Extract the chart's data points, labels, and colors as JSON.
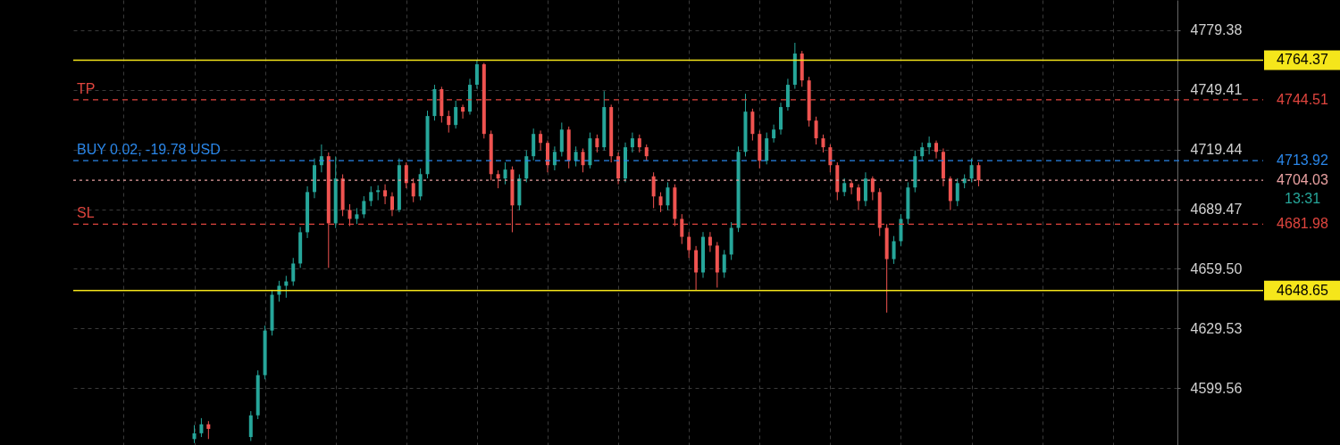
{
  "chart_data": {
    "type": "candlestick",
    "categories": [
      null,
      null,
      null,
      null,
      null,
      null,
      null,
      null,
      null,
      null,
      null,
      null,
      null,
      null,
      null,
      null,
      null,
      null,
      null,
      null,
      null,
      null,
      null,
      null,
      null,
      null,
      null,
      null,
      null,
      null,
      null,
      null,
      null,
      null,
      null,
      null,
      null,
      null,
      null,
      null,
      null,
      null,
      null,
      null,
      null,
      null,
      null,
      null,
      null,
      null,
      null,
      null,
      null,
      null,
      null,
      null,
      null,
      null,
      null,
      null,
      null,
      null,
      null,
      null,
      null,
      null,
      null,
      null,
      null,
      null,
      null,
      null,
      null,
      null,
      null,
      null,
      null,
      null,
      null,
      null,
      null,
      null,
      null,
      null,
      null,
      null,
      null,
      null,
      null,
      null,
      null,
      null,
      null,
      null,
      null,
      null,
      null,
      null,
      null,
      null,
      null,
      null,
      null,
      null,
      null,
      null,
      null,
      null,
      null,
      null,
      null,
      null,
      null,
      null,
      null,
      null,
      null,
      null,
      null,
      null,
      null,
      null,
      null,
      null,
      null,
      null,
      null,
      null,
      null,
      null,
      null,
      null,
      null,
      null,
      null,
      null,
      null,
      null,
      null,
      null,
      null,
      null,
      null,
      null,
      null,
      null,
      null,
      null,
      null,
      null,
      null,
      null,
      null,
      null,
      null
    ],
    "ohlc": [
      null,
      null,
      null,
      null,
      null,
      null,
      null,
      null,
      null,
      null,
      null,
      null,
      null,
      null,
      null,
      null,
      [
        4574.0,
        4581.0,
        4572.0,
        4576.9
      ],
      [
        4576.9,
        4584.5,
        4575.0,
        4581.4
      ],
      [
        4581.4,
        4583.0,
        4574.0,
        4579.1
      ],
      null,
      null,
      null,
      null,
      null,
      [
        4575.0,
        4588.0,
        4573.0,
        4585.9
      ],
      [
        4585.9,
        4608.5,
        4584.0,
        4606.1
      ],
      [
        4606.1,
        4631.0,
        4604.0,
        4628.5
      ],
      [
        4628.5,
        4649.0,
        4626.0,
        4646.5
      ],
      [
        4646.5,
        4653.5,
        4643.0,
        4651.0
      ],
      [
        4651.0,
        4656.0,
        4645.0,
        4653.2
      ],
      [
        4653.2,
        4665.0,
        4651.0,
        4662.2
      ],
      [
        4662.2,
        4680.5,
        4660.0,
        4677.9
      ],
      [
        4677.9,
        4701.0,
        4675.0,
        4698.1
      ],
      [
        4698.1,
        4715.0,
        4695.0,
        4711.6
      ],
      [
        4711.6,
        4722.0,
        4708.0,
        4716.1
      ],
      [
        4716.1,
        4718.0,
        4660.0,
        4682.4
      ],
      [
        4682.4,
        4716.0,
        4680.0,
        4704.9
      ],
      [
        4704.9,
        4707.0,
        4686.0,
        4689.1
      ],
      [
        4689.1,
        4692.0,
        4681.0,
        4684.6
      ],
      [
        4684.6,
        4690.0,
        4682.0,
        4686.9
      ],
      [
        4686.9,
        4696.0,
        4685.0,
        4693.6
      ],
      [
        4693.6,
        4701.0,
        4691.0,
        4698.1
      ],
      [
        4698.1,
        4701.5,
        4694.0,
        4699.0
      ],
      [
        4699.0,
        4702.0,
        4692.0,
        4695.9
      ],
      [
        4695.9,
        4698.0,
        4686.0,
        4689.1
      ],
      [
        4689.1,
        4715.0,
        4688.0,
        4711.6
      ],
      [
        4711.6,
        4713.0,
        4700.0,
        4702.6
      ],
      [
        4702.6,
        4705.0,
        4693.0,
        4695.9
      ],
      [
        4695.9,
        4710.0,
        4694.0,
        4707.1
      ],
      [
        4707.1,
        4739.0,
        4705.0,
        4736.3
      ],
      [
        4736.3,
        4752.0,
        4734.0,
        4749.8
      ],
      [
        4749.8,
        4751.0,
        4733.0,
        4736.3
      ],
      [
        4736.3,
        4739.0,
        4728.0,
        4731.8
      ],
      [
        4731.8,
        4744.0,
        4730.0,
        4740.8
      ],
      [
        4740.8,
        4742.0,
        4735.0,
        4738.5
      ],
      [
        4738.5,
        4755.0,
        4737.0,
        4752.0
      ],
      [
        4752.0,
        4764.1,
        4750.0,
        4762.3
      ],
      [
        4762.3,
        4763.0,
        4725.0,
        4727.3
      ],
      [
        4727.3,
        4729.0,
        4704.0,
        4707.1
      ],
      [
        4707.1,
        4709.0,
        4700.0,
        4704.9
      ],
      [
        4704.9,
        4713.0,
        4702.0,
        4709.4
      ],
      [
        4709.4,
        4711.0,
        4677.9,
        4691.4
      ],
      [
        4691.4,
        4707.0,
        4689.0,
        4704.9
      ],
      [
        4704.9,
        4719.0,
        4703.0,
        4716.1
      ],
      [
        4716.1,
        4730.0,
        4714.0,
        4727.3
      ],
      [
        4727.3,
        4729.0,
        4719.0,
        4722.8
      ],
      [
        4722.8,
        4724.0,
        4708.0,
        4711.6
      ],
      [
        4711.6,
        4721.0,
        4709.0,
        4718.3
      ],
      [
        4718.3,
        4733.0,
        4716.0,
        4729.5
      ],
      [
        4729.5,
        4731.0,
        4710.0,
        4713.8
      ],
      [
        4713.8,
        4721.0,
        4711.0,
        4718.3
      ],
      [
        4718.3,
        4720.0,
        4708.0,
        4711.6
      ],
      [
        4711.6,
        4728.0,
        4710.0,
        4725.1
      ],
      [
        4725.1,
        4727.0,
        4718.0,
        4720.6
      ],
      [
        4720.6,
        4748.8,
        4719.0,
        4740.8
      ],
      [
        4740.8,
        4742.0,
        4713.0,
        4716.1
      ],
      [
        4716.1,
        4718.0,
        4702.0,
        4704.9
      ],
      [
        4704.9,
        4723.0,
        4703.0,
        4720.6
      ],
      [
        4720.6,
        4728.0,
        4718.0,
        4725.1
      ],
      [
        4725.1,
        4727.0,
        4718.0,
        4720.6
      ],
      [
        4720.6,
        4722.0,
        4714.0,
        4716.1
      ],
      [
        4706.0,
        4708.0,
        4690.0,
        4695.9
      ],
      [
        4695.9,
        4698.0,
        4688.0,
        4691.4
      ],
      [
        4691.4,
        4703.0,
        4689.0,
        4700.4
      ],
      [
        4700.4,
        4702.0,
        4681.0,
        4684.6
      ],
      [
        4684.6,
        4687.0,
        4672.0,
        4675.6
      ],
      [
        4675.6,
        4678.0,
        4665.0,
        4668.9
      ],
      [
        4668.9,
        4671.0,
        4648.7,
        4657.7
      ],
      [
        4657.7,
        4678.0,
        4655.0,
        4675.6
      ],
      [
        4675.6,
        4678.0,
        4668.0,
        4671.2
      ],
      [
        4671.2,
        4673.0,
        4650.1,
        4657.7
      ],
      [
        4657.7,
        4669.0,
        4655.0,
        4666.7
      ],
      [
        4666.7,
        4683.0,
        4664.0,
        4680.1
      ],
      [
        4680.1,
        4721.0,
        4678.0,
        4718.3
      ],
      [
        4718.3,
        4747.5,
        4716.0,
        4738.5
      ],
      [
        4738.5,
        4740.0,
        4724.0,
        4727.3
      ],
      [
        4727.3,
        4729.0,
        4710.0,
        4713.8
      ],
      [
        4713.8,
        4728.0,
        4712.0,
        4725.1
      ],
      [
        4725.1,
        4732.0,
        4723.0,
        4729.5
      ],
      [
        4729.5,
        4743.0,
        4727.0,
        4740.8
      ],
      [
        4740.8,
        4755.0,
        4739.0,
        4752.0
      ],
      [
        4752.0,
        4773.1,
        4750.0,
        4767.7
      ],
      [
        4767.7,
        4769.0,
        4751.0,
        4754.2
      ],
      [
        4754.2,
        4756.0,
        4731.0,
        4734.0
      ],
      [
        4734.0,
        4736.0,
        4722.0,
        4725.1
      ],
      [
        4725.1,
        4727.0,
        4718.0,
        4720.6
      ],
      [
        4720.6,
        4722.0,
        4708.0,
        4711.6
      ],
      [
        4711.6,
        4713.0,
        4694.0,
        4698.1
      ],
      [
        4698.1,
        4705.0,
        4696.0,
        4702.6
      ],
      [
        4702.6,
        4704.0,
        4697.0,
        4700.4
      ],
      [
        4700.4,
        4702.0,
        4689.0,
        4693.6
      ],
      [
        4693.6,
        4708.0,
        4691.0,
        4704.9
      ],
      [
        4704.9,
        4706.0,
        4694.0,
        4698.1
      ],
      [
        4698.1,
        4700.0,
        4676.0,
        4680.1
      ],
      [
        4680.1,
        4682.0,
        4637.5,
        4664.4
      ],
      [
        4664.4,
        4676.0,
        4662.0,
        4673.4
      ],
      [
        4673.4,
        4687.0,
        4671.0,
        4684.6
      ],
      [
        4684.6,
        4703.0,
        4682.0,
        4700.4
      ],
      [
        4700.4,
        4719.0,
        4698.0,
        4716.1
      ],
      [
        4716.1,
        4723.0,
        4714.0,
        4720.6
      ],
      [
        4720.6,
        4726.0,
        4717.0,
        4722.8
      ],
      [
        4722.8,
        4724.0,
        4715.0,
        4718.3
      ],
      [
        4718.3,
        4720.0,
        4701.0,
        4704.9
      ],
      [
        4704.9,
        4706.0,
        4689.0,
        4693.6
      ],
      [
        4693.6,
        4705.0,
        4691.0,
        4702.6
      ],
      [
        4702.6,
        4707.0,
        4700.0,
        4704.9
      ],
      [
        4704.9,
        4715.0,
        4703.0,
        4711.6
      ],
      [
        4711.6,
        4713.0,
        4701.0,
        4704.0
      ],
      null,
      null,
      null,
      null,
      null,
      null,
      null,
      null,
      null,
      null,
      null,
      null,
      null,
      null,
      null,
      null,
      null,
      null,
      null,
      null,
      null,
      null,
      null,
      null,
      null,
      null,
      null
    ],
    "colors": [
      null,
      null,
      null,
      null,
      null,
      null,
      null,
      null,
      null,
      null,
      null,
      null,
      null,
      null,
      null,
      null,
      "#26a69a",
      "#26a69a",
      "#ef5350",
      null,
      null,
      null,
      null,
      null,
      "#26a69a",
      "#26a69a",
      "#26a69a",
      "#26a69a",
      "#26a69a",
      "#26a69a",
      "#26a69a",
      "#26a69a",
      "#26a69a",
      "#26a69a",
      "#26a69a",
      "#ef5350",
      "#26a69a",
      "#ef5350",
      "#ef5350",
      "#26a69a",
      "#26a69a",
      "#26a69a",
      "#26a69a",
      "#ef5350",
      "#ef5350",
      "#26a69a",
      "#ef5350",
      "#ef5350",
      "#26a69a",
      "#26a69a",
      "#26a69a",
      "#ef5350",
      "#ef5350",
      "#26a69a",
      "#ef5350",
      "#26a69a",
      "#26a69a",
      "#ef5350",
      "#ef5350",
      "#ef5350",
      "#26a69a",
      "#ef5350",
      "#26a69a",
      "#26a69a",
      "#26a69a",
      "#ef5350",
      "#ef5350",
      "#26a69a",
      "#26a69a",
      "#ef5350",
      "#26a69a",
      "#ef5350",
      "#26a69a",
      "#ef5350",
      "#26a69a",
      "#ef5350",
      "#ef5350",
      "#26a69a",
      "#26a69a",
      "#ef5350",
      "#ef5350",
      "#ef5350",
      "#ef5350",
      "#26a69a",
      "#ef5350",
      "#ef5350",
      "#ef5350",
      "#ef5350",
      "#26a69a",
      "#ef5350",
      "#ef5350",
      "#26a69a",
      "#26a69a",
      "#26a69a",
      "#26a69a",
      "#ef5350",
      "#ef5350",
      "#26a69a",
      "#26a69a",
      "#26a69a",
      "#26a69a",
      "#26a69a",
      "#ef5350",
      "#ef5350",
      "#ef5350",
      "#ef5350",
      "#ef5350",
      "#ef5350",
      "#26a69a",
      "#ef5350",
      "#ef5350",
      "#26a69a",
      "#ef5350",
      "#ef5350",
      "#ef5350",
      "#26a69a",
      "#26a69a",
      "#26a69a",
      "#26a69a",
      "#26a69a",
      "#26a69a",
      "#ef5350",
      "#ef5350",
      "#ef5350",
      "#26a69a",
      "#26a69a",
      "#26a69a",
      "#ef5350",
      null,
      null,
      null,
      null,
      null,
      null,
      null,
      null,
      null,
      null,
      null,
      null,
      null,
      null,
      null,
      null,
      null,
      null,
      null,
      null,
      null,
      null,
      null,
      null,
      null,
      null,
      null
    ],
    "ylim": [
      4571,
      4794.6
    ],
    "yticks": [
      4599.56,
      4629.53,
      {
        "value": 4659.5,
        "label": "4659.50"
      },
      4689.47,
      4719.44,
      4749.41,
      4779.38
    ],
    "annotations": [
      "TP",
      "BUY 0.02, -19.78 USD",
      "13:31",
      "SL"
    ],
    "grid": true,
    "ref_lines": [
      {
        "axis": "y",
        "value": 4764.37,
        "color": "#f5e61b",
        "line_style": "solid",
        "label": "4764.37"
      },
      {
        "axis": "y",
        "value": 4744.51,
        "color": "#e0453e",
        "line_style": "dashed",
        "label": "4744.51"
      },
      {
        "axis": "y",
        "value": 4713.92,
        "color": "#2a86e8",
        "line_style": "dashed",
        "label": "4713.92"
      },
      {
        "axis": "y",
        "value": 4704.03,
        "color": "#e8a0a0",
        "line_style": "dotted",
        "label": "4704.03"
      },
      {
        "axis": "y",
        "value": 4681.98,
        "color": "#e0453e",
        "line_style": "dashed",
        "label": "4681.98"
      },
      {
        "axis": "y",
        "value": 4648.65,
        "color": "#f5e61b",
        "line_style": "solid",
        "label": "4648.65"
      }
    ]
  }
}
